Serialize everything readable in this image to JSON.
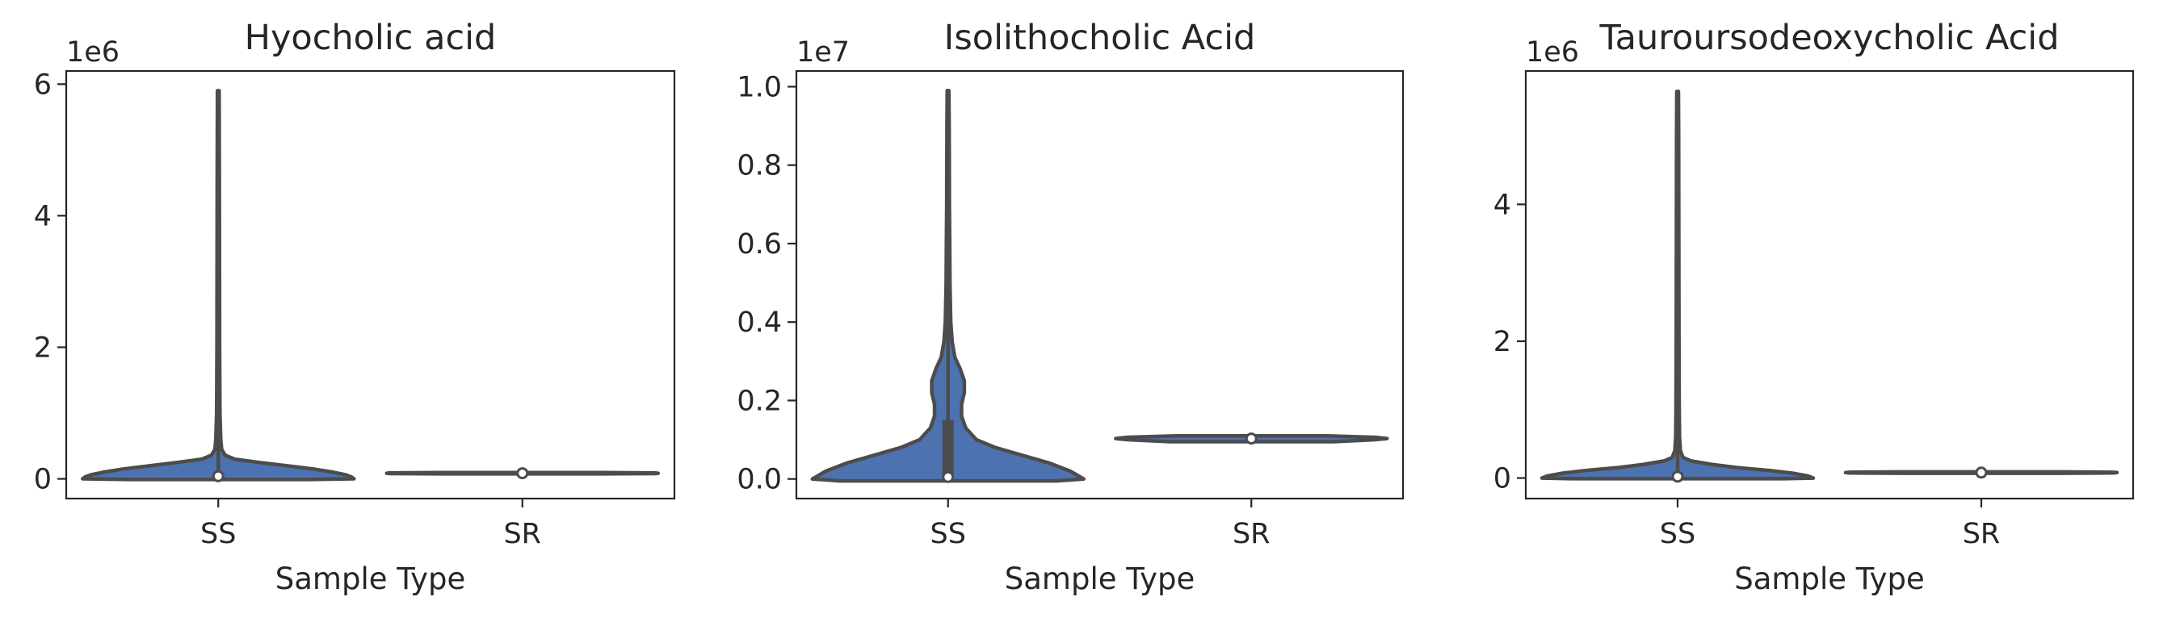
{
  "chart_data": [
    {
      "type": "violin",
      "title": "Hyocholic acid",
      "xlabel": "Sample Type",
      "ylabel": "",
      "categories": [
        "SS",
        "SR"
      ],
      "y_offset_label": "1e6",
      "scale": 1000000,
      "ylim": [
        -0.3,
        6.2
      ],
      "yticks": [
        0,
        2,
        4,
        6
      ],
      "ytick_labels": [
        "0",
        "2",
        "4",
        "6"
      ],
      "fill_color": "#4c72b0",
      "violins": [
        {
          "category": "SS",
          "ymin": -0.01,
          "ymax": 5.9,
          "median": 0.04,
          "q1": 0.0,
          "q3": 0.09,
          "profile": [
            [
              -0.01,
              0.66
            ],
            [
              0.0,
              1.0
            ],
            [
              0.03,
              0.98
            ],
            [
              0.06,
              0.94
            ],
            [
              0.1,
              0.85
            ],
            [
              0.15,
              0.7
            ],
            [
              0.2,
              0.5
            ],
            [
              0.25,
              0.3
            ],
            [
              0.3,
              0.12
            ],
            [
              0.36,
              0.05
            ],
            [
              0.45,
              0.025
            ],
            [
              0.6,
              0.018
            ],
            [
              1.0,
              0.012
            ],
            [
              2.0,
              0.01
            ],
            [
              3.0,
              0.009
            ],
            [
              4.5,
              0.008
            ],
            [
              5.9,
              0.006
            ]
          ]
        },
        {
          "category": "SR",
          "ymin": 0.075,
          "ymax": 0.095,
          "median": 0.085,
          "q1": 0.08,
          "q3": 0.09,
          "profile": [
            [
              0.075,
              0.6
            ],
            [
              0.08,
              0.98
            ],
            [
              0.085,
              1.0
            ],
            [
              0.09,
              0.98
            ],
            [
              0.095,
              0.6
            ]
          ]
        }
      ]
    },
    {
      "type": "violin",
      "title": "Isolithocholic Acid",
      "xlabel": "Sample Type",
      "ylabel": "",
      "categories": [
        "SS",
        "SR"
      ],
      "y_offset_label": "1e7",
      "scale": 10000000,
      "ylim": [
        -0.05,
        1.04
      ],
      "yticks": [
        0.0,
        0.2,
        0.4,
        0.6,
        0.8,
        1.0
      ],
      "ytick_labels": [
        "0.0",
        "0.2",
        "0.4",
        "0.6",
        "0.8",
        "1.0"
      ],
      "fill_color": "#4c72b0",
      "violins": [
        {
          "category": "SS",
          "ymin": -0.005,
          "ymax": 0.99,
          "median": 0.005,
          "q1": 0.0,
          "q3": 0.15,
          "profile": [
            [
              -0.005,
              0.8
            ],
            [
              0.0,
              1.0
            ],
            [
              0.02,
              0.9
            ],
            [
              0.04,
              0.75
            ],
            [
              0.06,
              0.55
            ],
            [
              0.08,
              0.35
            ],
            [
              0.1,
              0.21
            ],
            [
              0.13,
              0.13
            ],
            [
              0.16,
              0.1
            ],
            [
              0.19,
              0.1
            ],
            [
              0.22,
              0.12
            ],
            [
              0.25,
              0.12
            ],
            [
              0.28,
              0.09
            ],
            [
              0.31,
              0.05
            ],
            [
              0.35,
              0.03
            ],
            [
              0.4,
              0.02
            ],
            [
              0.5,
              0.014
            ],
            [
              0.6,
              0.012
            ],
            [
              0.7,
              0.01
            ],
            [
              0.8,
              0.009
            ],
            [
              0.9,
              0.008
            ],
            [
              0.99,
              0.006
            ]
          ]
        },
        {
          "category": "SR",
          "ymin": 0.095,
          "ymax": 0.11,
          "median": 0.103,
          "q1": 0.1,
          "q3": 0.106,
          "profile": [
            [
              0.095,
              0.6
            ],
            [
              0.1,
              0.9
            ],
            [
              0.103,
              1.0
            ],
            [
              0.106,
              0.92
            ],
            [
              0.11,
              0.55
            ]
          ]
        }
      ]
    },
    {
      "type": "violin",
      "title": "Tauroursodeoxycholic Acid",
      "xlabel": "Sample Type",
      "ylabel": "",
      "categories": [
        "SS",
        "SR"
      ],
      "y_offset_label": "1e6",
      "scale": 1000000,
      "ylim": [
        -0.3,
        5.95
      ],
      "yticks": [
        0,
        2,
        4
      ],
      "ytick_labels": [
        "0",
        "2",
        "4"
      ],
      "fill_color": "#4c72b0",
      "violins": [
        {
          "category": "SS",
          "ymin": -0.01,
          "ymax": 5.65,
          "median": 0.02,
          "q1": 0.0,
          "q3": 0.07,
          "profile": [
            [
              -0.01,
              0.78
            ],
            [
              0.0,
              1.0
            ],
            [
              0.03,
              0.96
            ],
            [
              0.07,
              0.85
            ],
            [
              0.11,
              0.68
            ],
            [
              0.15,
              0.45
            ],
            [
              0.2,
              0.25
            ],
            [
              0.25,
              0.1
            ],
            [
              0.3,
              0.04
            ],
            [
              0.4,
              0.02
            ],
            [
              0.6,
              0.014
            ],
            [
              1.0,
              0.012
            ],
            [
              2.0,
              0.01
            ],
            [
              3.5,
              0.009
            ],
            [
              5.0,
              0.008
            ],
            [
              5.65,
              0.006
            ]
          ]
        },
        {
          "category": "SR",
          "ymin": 0.07,
          "ymax": 0.09,
          "median": 0.08,
          "q1": 0.075,
          "q3": 0.085,
          "profile": [
            [
              0.07,
              0.6
            ],
            [
              0.075,
              0.97
            ],
            [
              0.08,
              1.0
            ],
            [
              0.085,
              0.97
            ],
            [
              0.09,
              0.6
            ]
          ]
        }
      ]
    }
  ]
}
